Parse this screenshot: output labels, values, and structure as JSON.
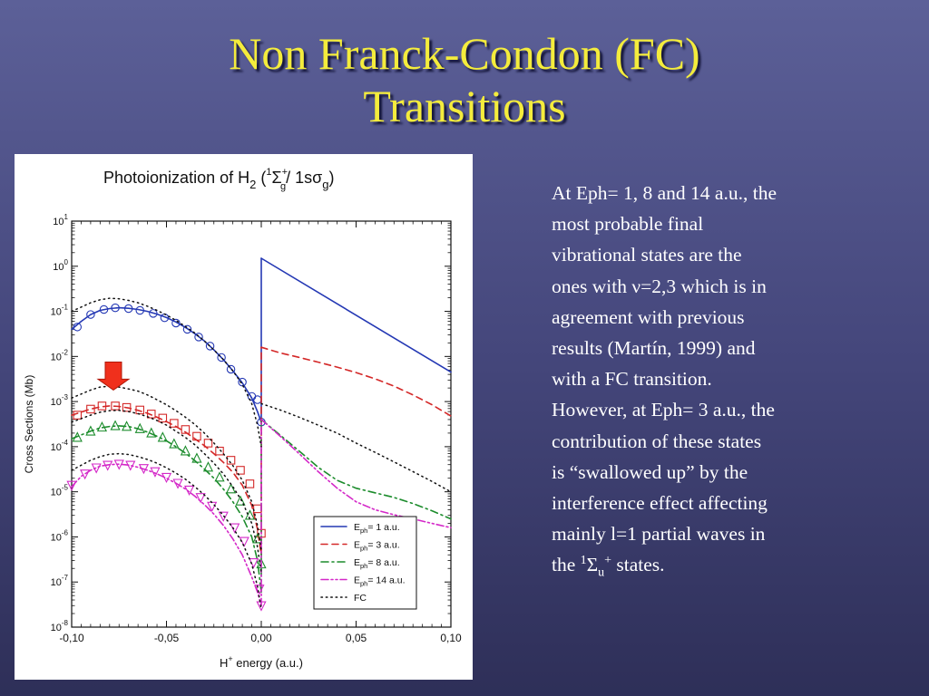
{
  "slide": {
    "title_line1": "Non Franck-Condon (FC)",
    "title_line2": "Transitions",
    "body_lines": [
      "At Eph= 1, 8 and 14 a.u., the",
      "most probable final",
      "vibrational states are  the",
      "ones with ν=2,3 which is in",
      "agreement with previous",
      "results (Martín, 1999) and",
      "with a FC transition.",
      "However, at Eph= 3 a.u., the",
      "contribution of these states",
      "is “swallowed up” by the",
      "interference effect affecting",
      "mainly l=1 partial waves in"
    ],
    "last_line": {
      "prefix": "the ",
      "sup1": "1",
      "sym": "Σ",
      "sub": "u",
      "sup2": "+",
      "suffix": " states."
    }
  },
  "colors": {
    "title": "#f4ec3c",
    "background_top": "#5c6098",
    "background_bottom": "#2e2f58",
    "arrow": "#f0301c"
  },
  "chart_data": {
    "type": "line",
    "title": "Photoionization of H2  (1Σ+g / 1sσg)",
    "title_parts": {
      "main": "Photoionization of H",
      "sub1": "2",
      "open": " (",
      "sup1": "1",
      "sigma": "Σ",
      "sup2": "+",
      "sub2": "g",
      "slash": "/ 1sσ",
      "sub3": "g",
      "close": ")"
    },
    "xlabel": "H+ energy (a.u.)",
    "xlabel_parts": {
      "main": "H",
      "sup": "+",
      "rest": " energy (a.u.)"
    },
    "ylabel": "Cross Sections (Mb)",
    "xlim": [
      -0.1,
      0.1
    ],
    "ylog": true,
    "ylim_exp": [
      -8,
      1
    ],
    "x_ticks": [
      -0.1,
      -0.05,
      0.0,
      0.05,
      0.1
    ],
    "x_tick_labels": [
      "-0,10",
      "-0,05",
      "0,00",
      "0,05",
      "0,10"
    ],
    "y_tick_exps": [
      1,
      0,
      -1,
      -2,
      -3,
      -4,
      -5,
      -6,
      -7,
      -8
    ],
    "y_tick_base": "10",
    "legend_position": "bottom-right",
    "series": [
      {
        "name": "Eph= 1 a.u.",
        "legend": {
          "pre": "E",
          "sub": "ph",
          "post": "= 1 a.u."
        },
        "color": "#2438b4",
        "dash": "solid",
        "marker": "circle",
        "left_x": [
          -0.1,
          -0.095,
          -0.09,
          -0.085,
          -0.08,
          -0.075,
          -0.07,
          -0.065,
          -0.06,
          -0.055,
          -0.05,
          -0.045,
          -0.04,
          -0.035,
          -0.03,
          -0.025,
          -0.02,
          -0.015,
          -0.01,
          -0.005,
          -0.002,
          0.0
        ],
        "left_y": [
          0.04,
          0.06,
          0.085,
          0.105,
          0.115,
          0.12,
          0.117,
          0.11,
          0.1,
          0.087,
          0.073,
          0.058,
          0.044,
          0.032,
          0.022,
          0.014,
          0.0085,
          0.0048,
          0.0026,
          0.0012,
          0.0006,
          0.00035
        ],
        "right_x": [
          0.0,
          0.1
        ],
        "right_y": [
          1.5,
          0.0045
        ],
        "marker_x": [
          -0.097,
          -0.09,
          -0.083,
          -0.077,
          -0.07,
          -0.064,
          -0.057,
          -0.051,
          -0.045,
          -0.039,
          -0.033,
          -0.027,
          -0.021,
          -0.016,
          -0.01,
          -0.005,
          -0.002,
          0.0
        ],
        "marker_y": [
          0.045,
          0.085,
          0.11,
          0.12,
          0.115,
          0.105,
          0.09,
          0.072,
          0.055,
          0.04,
          0.027,
          0.017,
          0.0095,
          0.0052,
          0.0027,
          0.0013,
          0.0011,
          0.00035
        ]
      },
      {
        "name": "Eph= 3 a.u.",
        "legend": {
          "pre": "E",
          "sub": "ph",
          "post": "= 3 a.u."
        },
        "color": "#d42828",
        "dash": "dashed",
        "marker": "square",
        "left_x": [
          -0.1,
          -0.09,
          -0.085,
          -0.08,
          -0.075,
          -0.07,
          -0.065,
          -0.06,
          -0.055,
          -0.05,
          -0.045,
          -0.04,
          -0.035,
          -0.03,
          -0.025,
          -0.02,
          -0.015,
          -0.01,
          -0.005,
          -0.002,
          0.0
        ],
        "left_y": [
          0.0005,
          0.00068,
          0.00076,
          0.0008,
          0.00078,
          0.00072,
          0.00064,
          0.00055,
          0.00045,
          0.00036,
          0.00028,
          0.00021,
          0.00015,
          0.000105,
          7e-05,
          4.5e-05,
          2.7e-05,
          1.4e-05,
          5e-06,
          1.5e-06,
          4e-07
        ],
        "right_x": [
          0.0,
          0.01,
          0.02,
          0.03,
          0.04,
          0.05,
          0.06,
          0.07,
          0.08,
          0.09,
          0.1
        ],
        "right_y": [
          0.016,
          0.012,
          0.0095,
          0.0075,
          0.0058,
          0.0044,
          0.0032,
          0.0022,
          0.0014,
          0.00085,
          0.00048
        ],
        "marker_x": [
          -0.097,
          -0.09,
          -0.084,
          -0.077,
          -0.071,
          -0.064,
          -0.058,
          -0.052,
          -0.046,
          -0.04,
          -0.034,
          -0.028,
          -0.022,
          -0.016,
          -0.011,
          -0.006,
          -0.002,
          0.0
        ],
        "marker_y": [
          0.0005,
          0.00068,
          0.0008,
          0.0008,
          0.00074,
          0.00065,
          0.00053,
          0.00043,
          0.00033,
          0.00024,
          0.00017,
          0.00012,
          8e-05,
          5e-05,
          3e-05,
          1.5e-05,
          4.2e-06,
          1.2e-06
        ]
      },
      {
        "name": "Eph= 8 a.u.",
        "legend": {
          "pre": "E",
          "sub": "ph",
          "post": "= 8 a.u."
        },
        "color": "#1c8c2c",
        "dash": "dashdot",
        "marker": "triangle-up",
        "left_x": [
          -0.1,
          -0.09,
          -0.085,
          -0.08,
          -0.075,
          -0.07,
          -0.065,
          -0.06,
          -0.055,
          -0.05,
          -0.045,
          -0.04,
          -0.035,
          -0.03,
          -0.025,
          -0.02,
          -0.015,
          -0.01,
          -0.005,
          -0.002,
          0.0
        ],
        "left_y": [
          0.00015,
          0.00022,
          0.00026,
          0.00028,
          0.00029,
          0.00028,
          0.00025,
          0.00021,
          0.00017,
          0.000135,
          0.0001,
          7.2e-05,
          4.9e-05,
          3.2e-05,
          2e-05,
          1.15e-05,
          6e-06,
          2.8e-06,
          1e-06,
          3e-07,
          6e-08
        ],
        "right_x": [
          0.0,
          0.01,
          0.02,
          0.03,
          0.04,
          0.05,
          0.06,
          0.07,
          0.08,
          0.09,
          0.1
        ],
        "right_y": [
          0.0004,
          0.00018,
          8e-05,
          3.5e-05,
          1.8e-05,
          1.2e-05,
          9.5e-06,
          7.5e-06,
          5.5e-06,
          3.8e-06,
          2.5e-06
        ],
        "marker_x": [
          -0.097,
          -0.09,
          -0.084,
          -0.077,
          -0.071,
          -0.064,
          -0.058,
          -0.052,
          -0.046,
          -0.04,
          -0.034,
          -0.028,
          -0.022,
          -0.016,
          -0.011,
          -0.006,
          -0.002,
          0.0
        ],
        "marker_y": [
          0.00016,
          0.00022,
          0.00027,
          0.00029,
          0.00028,
          0.00025,
          0.0002,
          0.00016,
          0.000115,
          8e-05,
          5.5e-05,
          3.5e-05,
          2.1e-05,
          1.15e-05,
          6.2e-06,
          3e-06,
          9e-07,
          2.5e-07
        ]
      },
      {
        "name": "Eph= 14 a.u.",
        "legend": {
          "pre": "E",
          "sub": "ph",
          "post": "= 14 a.u."
        },
        "color": "#d428c8",
        "dash": "dashdotdot",
        "marker": "triangle-down",
        "left_x": [
          -0.1,
          -0.095,
          -0.09,
          -0.085,
          -0.08,
          -0.075,
          -0.07,
          -0.065,
          -0.06,
          -0.055,
          -0.05,
          -0.045,
          -0.04,
          -0.035,
          -0.03,
          -0.025,
          -0.02,
          -0.015,
          -0.01,
          -0.005,
          -0.002,
          0.0
        ],
        "left_y": [
          1.3e-05,
          2.2e-05,
          3e-05,
          3.7e-05,
          4e-05,
          4.1e-05,
          3.9e-05,
          3.5e-05,
          3e-05,
          2.5e-05,
          2e-05,
          1.55e-05,
          1.15e-05,
          8e-06,
          5.2e-06,
          3.2e-06,
          1.8e-06,
          9e-07,
          4e-07,
          1.3e-07,
          6e-08,
          3e-08
        ],
        "right_x": [
          0.0,
          0.01,
          0.02,
          0.03,
          0.04,
          0.05,
          0.06,
          0.07,
          0.08,
          0.09,
          0.1
        ],
        "right_y": [
          0.0004,
          0.00017,
          7e-05,
          2.8e-05,
          1.2e-05,
          6e-06,
          4e-06,
          3.1e-06,
          2.5e-06,
          2e-06,
          1.6e-06
        ],
        "marker_x": [
          -0.1,
          -0.093,
          -0.087,
          -0.081,
          -0.075,
          -0.069,
          -0.062,
          -0.056,
          -0.05,
          -0.044,
          -0.038,
          -0.032,
          -0.026,
          -0.02,
          -0.014,
          -0.009,
          -0.004,
          -0.001,
          0.0
        ],
        "marker_y": [
          1.4e-05,
          2.5e-05,
          3.4e-05,
          3.9e-05,
          4.1e-05,
          3.9e-05,
          3.3e-05,
          2.8e-05,
          2.1e-05,
          1.55e-05,
          1.1e-05,
          7.5e-06,
          4.8e-06,
          2.9e-06,
          1.6e-06,
          8e-07,
          2.7e-07,
          7e-08,
          3e-08
        ]
      },
      {
        "name": "FC",
        "legend": {
          "pre": "FC",
          "sub": "",
          "post": ""
        },
        "color": "#111111",
        "dash": "dotted",
        "marker": "none",
        "curves": [
          {
            "x": [
              -0.1,
              -0.09,
              -0.085,
              -0.08,
              -0.075,
              -0.07,
              -0.065,
              -0.06,
              -0.055,
              -0.05,
              -0.045,
              -0.04,
              -0.035,
              -0.03,
              -0.025,
              -0.02,
              -0.015,
              -0.01,
              -0.005,
              -0.002,
              0.0
            ],
            "y": [
              0.1,
              0.155,
              0.18,
              0.195,
              0.19,
              0.175,
              0.155,
              0.13,
              0.105,
              0.083,
              0.063,
              0.046,
              0.033,
              0.022,
              0.014,
              0.0085,
              0.0048,
              0.0024,
              0.0009,
              0.0003,
              0.0001
            ]
          },
          {
            "x": [
              -0.1,
              -0.09,
              -0.085,
              -0.08,
              -0.075,
              -0.07,
              -0.065,
              -0.06,
              -0.055,
              -0.05,
              -0.045,
              -0.04,
              -0.035,
              -0.03,
              -0.025,
              -0.02,
              -0.015,
              -0.01,
              -0.005,
              -0.002,
              0.0
            ],
            "y": [
              0.0012,
              0.0018,
              0.0021,
              0.0022,
              0.0021,
              0.0019,
              0.0017,
              0.0014,
              0.0011,
              0.00085,
              0.00063,
              0.00045,
              0.00031,
              0.0002,
              0.00012,
              7e-05,
              3.8e-05,
              1.8e-05,
              6e-06,
              1.8e-06,
              5e-07
            ]
          },
          {
            "x": [
              -0.1,
              -0.09,
              -0.085,
              -0.08,
              -0.075,
              -0.07,
              -0.065,
              -0.06,
              -0.055,
              -0.05,
              -0.045,
              -0.04,
              -0.035,
              -0.03,
              -0.025,
              -0.02,
              -0.015,
              -0.01,
              -0.005,
              -0.002,
              0.0
            ],
            "y": [
              0.00035,
              0.0005,
              0.00058,
              0.00063,
              0.00064,
              0.0006,
              0.00054,
              0.00046,
              0.00038,
              0.0003,
              0.00022,
              0.00016,
              0.00011,
              7e-05,
              4.3e-05,
              2.5e-05,
              1.3e-05,
              6e-06,
              2e-06,
              6e-07,
              1.6e-07
            ]
          },
          {
            "x": [
              -0.1,
              -0.09,
              -0.085,
              -0.08,
              -0.075,
              -0.07,
              -0.065,
              -0.06,
              -0.055,
              -0.05,
              -0.045,
              -0.04,
              -0.035,
              -0.03,
              -0.025,
              -0.02,
              -0.015,
              -0.01,
              -0.005,
              -0.002,
              0.0
            ],
            "y": [
              3e-05,
              5e-05,
              6e-05,
              6.8e-05,
              7e-05,
              6.7e-05,
              6e-05,
              5.2e-05,
              4.3e-05,
              3.4e-05,
              2.6e-05,
              1.9e-05,
              1.3e-05,
              8.5e-06,
              5.2e-06,
              3e-06,
              1.6e-06,
              7.5e-07,
              2.5e-07,
              8e-08,
              2.5e-08
            ]
          },
          {
            "x": [
              0.0,
              0.01,
              0.02,
              0.03,
              0.04,
              0.05,
              0.06,
              0.07,
              0.08,
              0.09,
              0.1
            ],
            "y": [
              0.0009,
              0.00065,
              0.00045,
              0.0003,
              0.0002,
              0.00012,
              7.5e-05,
              4.6e-05,
              2.8e-05,
              1.7e-05,
              1e-05
            ]
          }
        ]
      }
    ],
    "annotation": {
      "type": "arrow-down",
      "x": -0.078,
      "y_top": 0.0075,
      "y_bottom": 0.0018
    }
  }
}
